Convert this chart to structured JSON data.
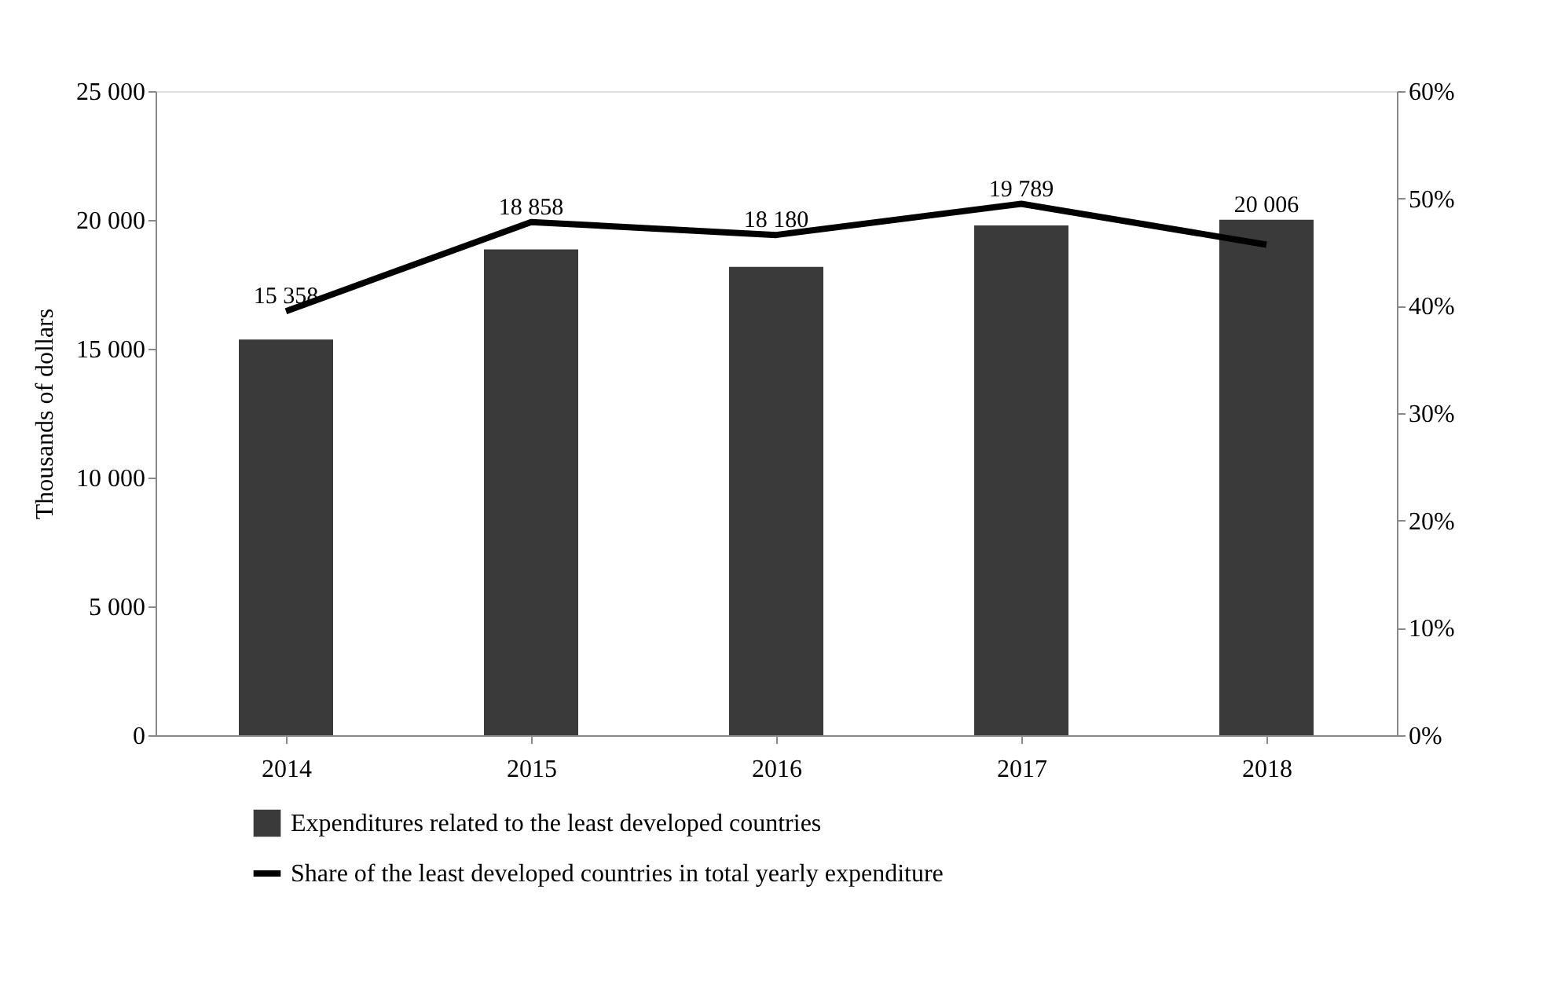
{
  "chart_data": {
    "type": "bar",
    "ylabel": "Thousands of dollars",
    "categories": [
      "2014",
      "2015",
      "2016",
      "2017",
      "2018"
    ],
    "series": [
      {
        "name": "Expenditures related to the least developed countries",
        "color": "#3a3a3a",
        "values": [
          15358,
          18858,
          18180,
          19789,
          20006
        ],
        "value_labels": [
          "15 358",
          "18 858",
          "18 180",
          "19 789",
          "20 006"
        ]
      },
      {
        "name": "Share of the least developed countries in total yearly expenditure",
        "type": "line",
        "axis": "y2",
        "color": "#000000",
        "values": [
          39.5,
          47.8,
          46.6,
          49.5,
          45.7
        ]
      }
    ],
    "ylim": [
      0,
      25000
    ],
    "yticks": [
      {
        "value": 0,
        "label": "0"
      },
      {
        "value": 5000,
        "label": "5 000"
      },
      {
        "value": 10000,
        "label": "10 000"
      },
      {
        "value": 15000,
        "label": "15 000"
      },
      {
        "value": 20000,
        "label": "20 000"
      },
      {
        "value": 25000,
        "label": "25 000"
      }
    ],
    "y2lim": [
      0,
      60
    ],
    "y2ticks": [
      {
        "value": 0,
        "label": "0%"
      },
      {
        "value": 10,
        "label": "10%"
      },
      {
        "value": 20,
        "label": "20%"
      },
      {
        "value": 30,
        "label": "30%"
      },
      {
        "value": 40,
        "label": "40%"
      },
      {
        "value": 50,
        "label": "50%"
      },
      {
        "value": 60,
        "label": "60%"
      }
    ],
    "grid": false,
    "legend": "bottom",
    "marker": "none",
    "line_style": "solid"
  }
}
